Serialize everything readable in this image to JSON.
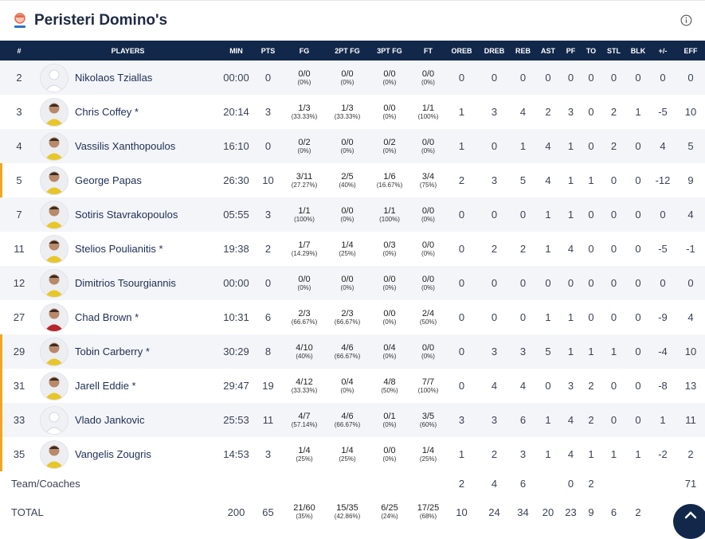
{
  "team": {
    "name": "Peristeri Domino's"
  },
  "colors": {
    "header_bg": "#12284b",
    "starter_marker": "#f2a61f"
  },
  "columns": [
    "#",
    "PLAYERS",
    "MIN",
    "PTS",
    "FG",
    "2PT FG",
    "3PT FG",
    "FT",
    "OREB",
    "DREB",
    "REB",
    "AST",
    "PF",
    "TO",
    "STL",
    "BLK",
    "+/-",
    "EFF"
  ],
  "players": [
    {
      "num": "2",
      "name": "Nikolaos Tziallas",
      "avatar": "blank",
      "min": "00:00",
      "pts": "0",
      "fg": "0/0",
      "fg_pct": "(0%)",
      "fg2": "0/0",
      "fg2_pct": "(0%)",
      "fg3": "0/0",
      "fg3_pct": "(0%)",
      "ft": "0/0",
      "ft_pct": "(0%)",
      "oreb": "0",
      "dreb": "0",
      "reb": "0",
      "ast": "0",
      "pf": "0",
      "to": "0",
      "stl": "0",
      "blk": "0",
      "pm": "0",
      "eff": "0",
      "starter": false
    },
    {
      "num": "3",
      "name": "Chris Coffey *",
      "avatar": "photo",
      "min": "20:14",
      "pts": "3",
      "fg": "1/3",
      "fg_pct": "(33.33%)",
      "fg2": "1/3",
      "fg2_pct": "(33.33%)",
      "fg3": "0/0",
      "fg3_pct": "(0%)",
      "ft": "1/1",
      "ft_pct": "(100%)",
      "oreb": "1",
      "dreb": "3",
      "reb": "4",
      "ast": "2",
      "pf": "3",
      "to": "0",
      "stl": "2",
      "blk": "1",
      "pm": "-5",
      "eff": "10",
      "starter": false
    },
    {
      "num": "4",
      "name": "Vassilis Xanthopoulos",
      "avatar": "photo",
      "min": "16:10",
      "pts": "0",
      "fg": "0/2",
      "fg_pct": "(0%)",
      "fg2": "0/0",
      "fg2_pct": "(0%)",
      "fg3": "0/2",
      "fg3_pct": "(0%)",
      "ft": "0/0",
      "ft_pct": "(0%)",
      "oreb": "1",
      "dreb": "0",
      "reb": "1",
      "ast": "4",
      "pf": "1",
      "to": "0",
      "stl": "2",
      "blk": "0",
      "pm": "4",
      "eff": "5",
      "starter": false
    },
    {
      "num": "5",
      "name": "George Papas",
      "avatar": "photo",
      "min": "26:30",
      "pts": "10",
      "fg": "3/11",
      "fg_pct": "(27.27%)",
      "fg2": "2/5",
      "fg2_pct": "(40%)",
      "fg3": "1/6",
      "fg3_pct": "(16.67%)",
      "ft": "3/4",
      "ft_pct": "(75%)",
      "oreb": "2",
      "dreb": "3",
      "reb": "5",
      "ast": "4",
      "pf": "1",
      "to": "1",
      "stl": "0",
      "blk": "0",
      "pm": "-12",
      "eff": "9",
      "starter": true
    },
    {
      "num": "7",
      "name": "Sotiris Stavrakopoulos",
      "avatar": "photo",
      "min": "05:55",
      "pts": "3",
      "fg": "1/1",
      "fg_pct": "(100%)",
      "fg2": "0/0",
      "fg2_pct": "(0%)",
      "fg3": "1/1",
      "fg3_pct": "(100%)",
      "ft": "0/0",
      "ft_pct": "(0%)",
      "oreb": "0",
      "dreb": "0",
      "reb": "0",
      "ast": "1",
      "pf": "1",
      "to": "0",
      "stl": "0",
      "blk": "0",
      "pm": "0",
      "eff": "4",
      "starter": false
    },
    {
      "num": "11",
      "name": "Stelios Poulianitis *",
      "avatar": "photo",
      "min": "19:38",
      "pts": "2",
      "fg": "1/7",
      "fg_pct": "(14.29%)",
      "fg2": "1/4",
      "fg2_pct": "(25%)",
      "fg3": "0/3",
      "fg3_pct": "(0%)",
      "ft": "0/0",
      "ft_pct": "(0%)",
      "oreb": "0",
      "dreb": "2",
      "reb": "2",
      "ast": "1",
      "pf": "4",
      "to": "0",
      "stl": "0",
      "blk": "0",
      "pm": "-5",
      "eff": "-1",
      "starter": false
    },
    {
      "num": "12",
      "name": "Dimitrios Tsourgiannis",
      "avatar": "photo",
      "min": "00:00",
      "pts": "0",
      "fg": "0/0",
      "fg_pct": "(0%)",
      "fg2": "0/0",
      "fg2_pct": "(0%)",
      "fg3": "0/0",
      "fg3_pct": "(0%)",
      "ft": "0/0",
      "ft_pct": "(0%)",
      "oreb": "0",
      "dreb": "0",
      "reb": "0",
      "ast": "0",
      "pf": "0",
      "to": "0",
      "stl": "0",
      "blk": "0",
      "pm": "0",
      "eff": "0",
      "starter": false
    },
    {
      "num": "27",
      "name": "Chad Brown *",
      "avatar": "photo-red",
      "min": "10:31",
      "pts": "6",
      "fg": "2/3",
      "fg_pct": "(66.67%)",
      "fg2": "2/3",
      "fg2_pct": "(66.67%)",
      "fg3": "0/0",
      "fg3_pct": "(0%)",
      "ft": "2/4",
      "ft_pct": "(50%)",
      "oreb": "0",
      "dreb": "0",
      "reb": "0",
      "ast": "1",
      "pf": "1",
      "to": "0",
      "stl": "0",
      "blk": "0",
      "pm": "-9",
      "eff": "4",
      "starter": false
    },
    {
      "num": "29",
      "name": "Tobin Carberry *",
      "avatar": "photo",
      "min": "30:29",
      "pts": "8",
      "fg": "4/10",
      "fg_pct": "(40%)",
      "fg2": "4/6",
      "fg2_pct": "(66.67%)",
      "fg3": "0/4",
      "fg3_pct": "(0%)",
      "ft": "0/0",
      "ft_pct": "(0%)",
      "oreb": "0",
      "dreb": "3",
      "reb": "3",
      "ast": "5",
      "pf": "1",
      "to": "1",
      "stl": "1",
      "blk": "0",
      "pm": "-4",
      "eff": "10",
      "starter": true
    },
    {
      "num": "31",
      "name": "Jarell Eddie *",
      "avatar": "photo",
      "min": "29:47",
      "pts": "19",
      "fg": "4/12",
      "fg_pct": "(33.33%)",
      "fg2": "0/4",
      "fg2_pct": "(0%)",
      "fg3": "4/8",
      "fg3_pct": "(50%)",
      "ft": "7/7",
      "ft_pct": "(100%)",
      "oreb": "0",
      "dreb": "4",
      "reb": "4",
      "ast": "0",
      "pf": "3",
      "to": "2",
      "stl": "0",
      "blk": "0",
      "pm": "-8",
      "eff": "13",
      "starter": true
    },
    {
      "num": "33",
      "name": "Vlado Jankovic",
      "avatar": "blank",
      "min": "25:53",
      "pts": "11",
      "fg": "4/7",
      "fg_pct": "(57.14%)",
      "fg2": "4/6",
      "fg2_pct": "(66.67%)",
      "fg3": "0/1",
      "fg3_pct": "(0%)",
      "ft": "3/5",
      "ft_pct": "(60%)",
      "oreb": "3",
      "dreb": "3",
      "reb": "6",
      "ast": "1",
      "pf": "4",
      "to": "2",
      "stl": "0",
      "blk": "0",
      "pm": "1",
      "eff": "11",
      "starter": true
    },
    {
      "num": "35",
      "name": "Vangelis Zougris",
      "avatar": "photo",
      "min": "14:53",
      "pts": "3",
      "fg": "1/4",
      "fg_pct": "(25%)",
      "fg2": "1/4",
      "fg2_pct": "(25%)",
      "fg3": "0/0",
      "fg3_pct": "(0%)",
      "ft": "1/4",
      "ft_pct": "(25%)",
      "oreb": "1",
      "dreb": "2",
      "reb": "3",
      "ast": "1",
      "pf": "4",
      "to": "1",
      "stl": "1",
      "blk": "1",
      "pm": "-2",
      "eff": "2",
      "starter": true
    }
  ],
  "team_coaches": {
    "label": "Team/Coaches",
    "oreb": "2",
    "dreb": "4",
    "reb": "6",
    "ast": "",
    "pf": "0",
    "to": "2",
    "stl": "",
    "blk": "",
    "pm": "",
    "eff": "71"
  },
  "total": {
    "label": "TOTAL",
    "min": "200",
    "pts": "65",
    "fg": "21/60",
    "fg_pct": "(35%)",
    "fg2": "15/35",
    "fg2_pct": "(42.86%)",
    "fg3": "6/25",
    "fg3_pct": "(24%)",
    "ft": "17/25",
    "ft_pct": "(68%)",
    "oreb": "10",
    "dreb": "24",
    "reb": "34",
    "ast": "20",
    "pf": "23",
    "to": "9",
    "stl": "6",
    "blk": "2"
  }
}
